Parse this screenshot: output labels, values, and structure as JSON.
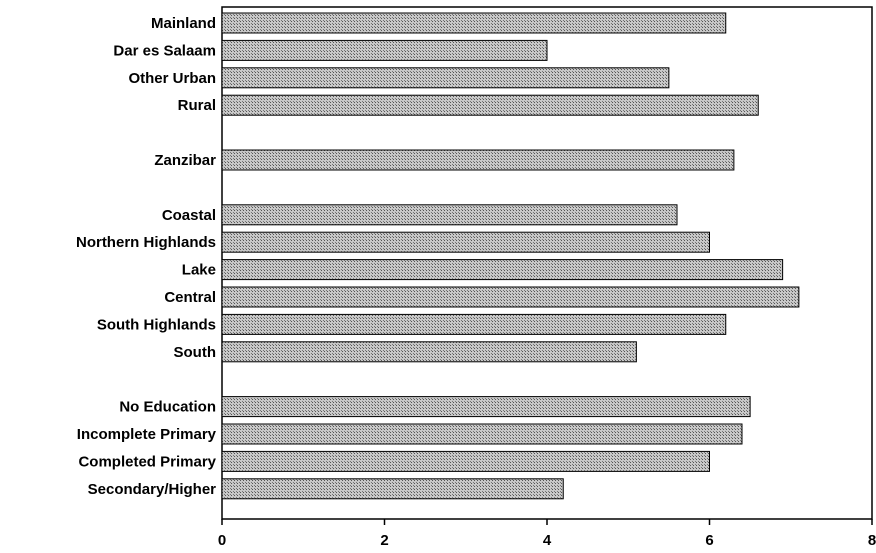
{
  "chart_data": {
    "type": "bar",
    "orientation": "horizontal",
    "title": "",
    "xlabel": "",
    "ylabel": "",
    "xlim": [
      0,
      8
    ],
    "xticks": [
      "0",
      "2",
      "4",
      "6",
      "8"
    ],
    "grid": false,
    "legend": "none",
    "bar_fill": "#bdbdbd",
    "bar_hatch": "crosshatch",
    "bar_stroke": "#000000",
    "groups": [
      {
        "categories": [
          "Mainland",
          "Dar es Salaam",
          "Other Urban",
          "Rural"
        ],
        "values": [
          6.2,
          4.0,
          5.5,
          6.6
        ]
      },
      {
        "categories": [
          "Zanzibar"
        ],
        "values": [
          6.3
        ]
      },
      {
        "categories": [
          "Coastal",
          "Northern Highlands",
          "Lake",
          "Central",
          "South Highlands",
          "South"
        ],
        "values": [
          5.6,
          6.0,
          6.9,
          7.1,
          6.2,
          5.1
        ]
      },
      {
        "categories": [
          "No Education",
          "Incomplete Primary",
          "Completed Primary",
          "Secondary/Higher"
        ],
        "values": [
          6.5,
          6.4,
          6.0,
          4.2
        ]
      }
    ]
  }
}
